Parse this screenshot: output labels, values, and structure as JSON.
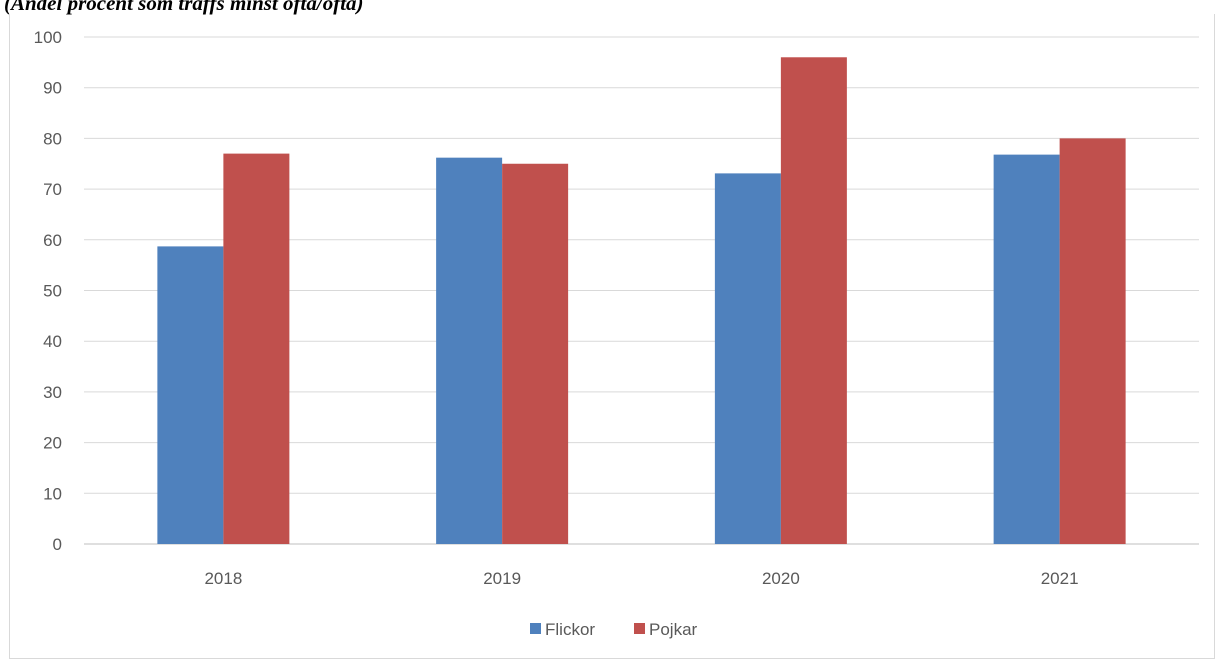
{
  "caption": "(Andel procent som träffs minst ofta/ofta)",
  "chart_data": {
    "type": "bar",
    "categories": [
      "2018",
      "2019",
      "2020",
      "2021"
    ],
    "series": [
      {
        "name": "Flickor",
        "values": [
          58.7,
          76.2,
          73.1,
          76.8
        ],
        "color": "#4f81bd"
      },
      {
        "name": "Pojkar",
        "values": [
          77.0,
          75.0,
          96.0,
          80.0
        ],
        "color": "#c0504d"
      }
    ],
    "ylim": [
      0,
      100
    ],
    "yticks": [
      "0",
      "10",
      "20",
      "30",
      "40",
      "50",
      "60",
      "70",
      "80",
      "90",
      "100"
    ],
    "grid": true,
    "legend_position": "bottom"
  }
}
